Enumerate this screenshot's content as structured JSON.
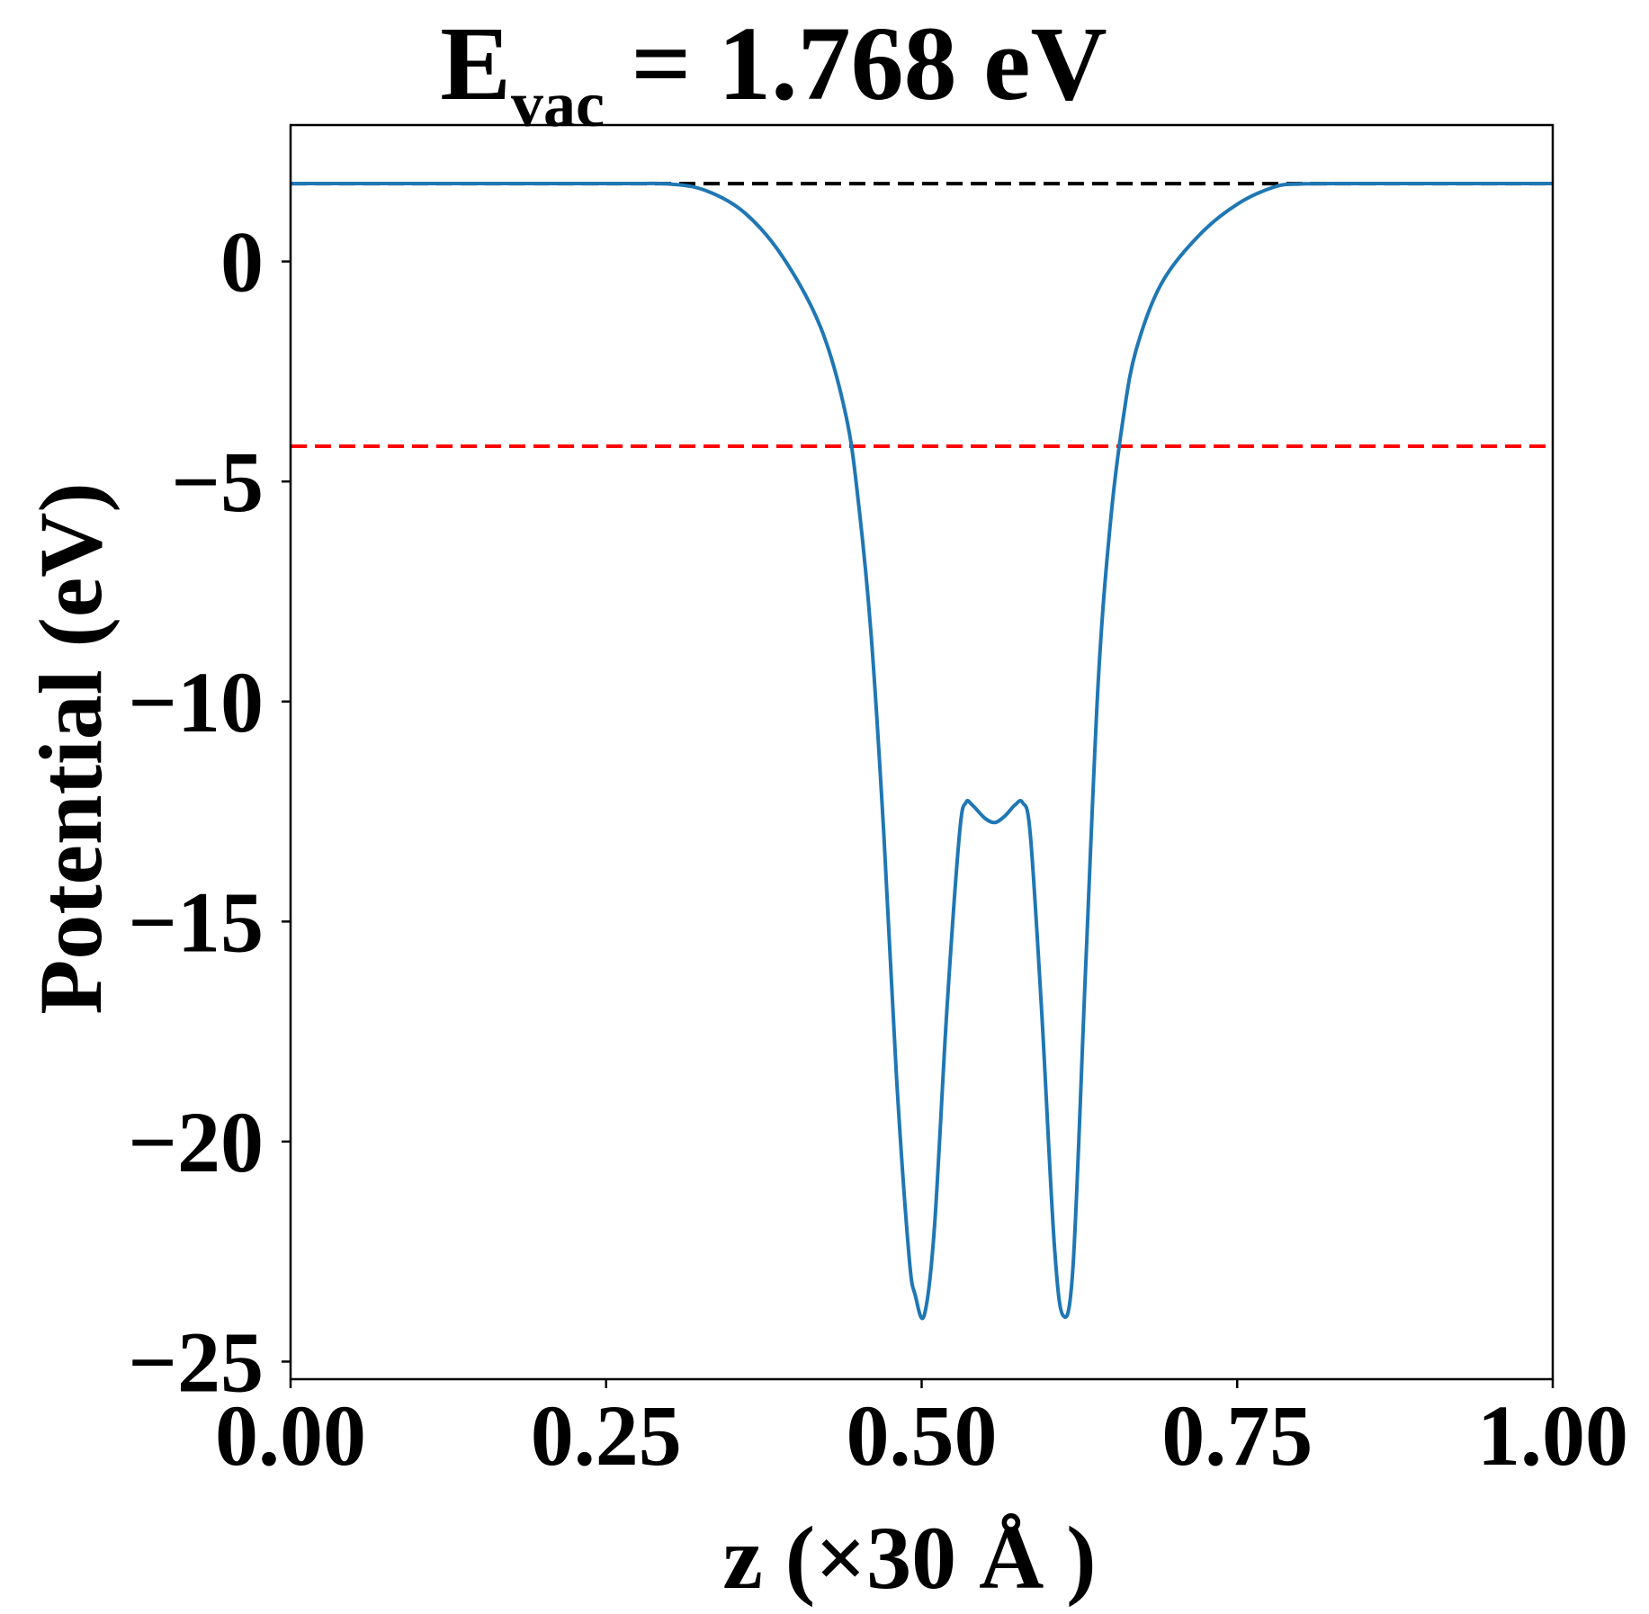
{
  "chart_data": {
    "type": "line",
    "title": {
      "main": "E",
      "subscript": "vac",
      "rest": " = 1.768 eV"
    },
    "xlabel": "z (×30 Å )",
    "ylabel": "Potential (eV)",
    "xlim": [
      0.0,
      1.0
    ],
    "ylim": [
      -25.4,
      3.1
    ],
    "x_ticks": [
      0.0,
      0.25,
      0.5,
      0.75,
      1.0
    ],
    "x_tick_labels": [
      "0.00",
      "0.25",
      "0.50",
      "0.75",
      "1.00"
    ],
    "y_ticks": [
      0,
      -5,
      -10,
      -15,
      -20,
      -25
    ],
    "y_tick_labels": [
      "0",
      "−5",
      "−10",
      "−15",
      "−20",
      "−25"
    ],
    "grid": false,
    "reference_lines": [
      {
        "y": 1.768,
        "color": "#000000",
        "style": "dashed"
      },
      {
        "y": -4.2,
        "color": "#ff0000",
        "style": "dashed"
      }
    ],
    "series": [
      {
        "color": "#1f77b4",
        "x": [
          0.0,
          0.25,
          0.3,
          0.33,
          0.36,
          0.39,
          0.42,
          0.44,
          0.45,
          0.46,
          0.47,
          0.48,
          0.49,
          0.495,
          0.502,
          0.51,
          0.52,
          0.53,
          0.535,
          0.54,
          0.55,
          0.558,
          0.566,
          0.574,
          0.58,
          0.586,
          0.595,
          0.605,
          0.612,
          0.62,
          0.63,
          0.64,
          0.65,
          0.66,
          0.67,
          0.69,
          0.72,
          0.75,
          0.78,
          0.8,
          0.83,
          1.0
        ],
        "y": [
          1.77,
          1.77,
          1.76,
          1.6,
          1.1,
          0.1,
          -1.5,
          -3.5,
          -5.5,
          -8.5,
          -13.0,
          -18.5,
          -22.6,
          -23.5,
          -23.95,
          -22.0,
          -17.0,
          -13.0,
          -12.3,
          -12.35,
          -12.65,
          -12.75,
          -12.6,
          -12.35,
          -12.3,
          -13.0,
          -17.0,
          -22.3,
          -23.95,
          -22.8,
          -16.0,
          -9.5,
          -5.8,
          -3.5,
          -2.0,
          -0.5,
          0.6,
          1.3,
          1.7,
          1.76,
          1.77,
          1.77
        ]
      }
    ]
  }
}
